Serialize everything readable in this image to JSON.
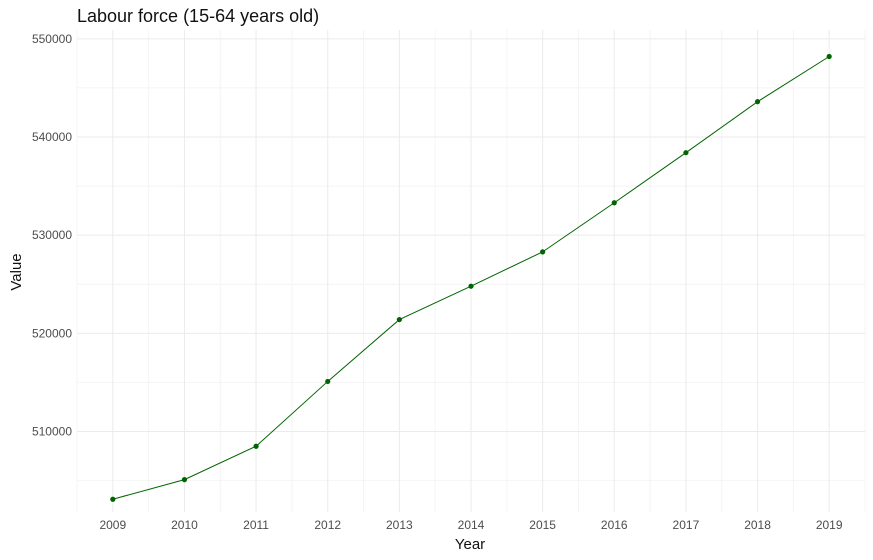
{
  "chart_data": {
    "type": "line",
    "title": "Labour force (15-64 years old)",
    "xlabel": "Year",
    "ylabel": "Value",
    "x": [
      2009,
      2010,
      2011,
      2012,
      2013,
      2014,
      2015,
      2016,
      2017,
      2018,
      2019
    ],
    "series": [
      {
        "values": [
          503100,
          505100,
          508500,
          515100,
          521400,
          524800,
          528300,
          533300,
          538400,
          543600,
          548200
        ]
      }
    ],
    "y_ticks": [
      510000,
      520000,
      530000,
      540000,
      550000
    ],
    "y_tick_labels": [
      "510000",
      "520000",
      "530000",
      "540000",
      "550000"
    ],
    "x_tick_labels": [
      "2009",
      "2010",
      "2011",
      "2012",
      "2013",
      "2014",
      "2015",
      "2016",
      "2017",
      "2018",
      "2019"
    ],
    "xlim": [
      2008.5,
      2019.5
    ],
    "ylim": [
      501800,
      550900
    ],
    "grid": true,
    "legend": "none",
    "colors": {
      "line": "#006400",
      "point": "#006400",
      "grid_major": "#ebebeb",
      "grid_minor": "#f4f4f4"
    }
  }
}
